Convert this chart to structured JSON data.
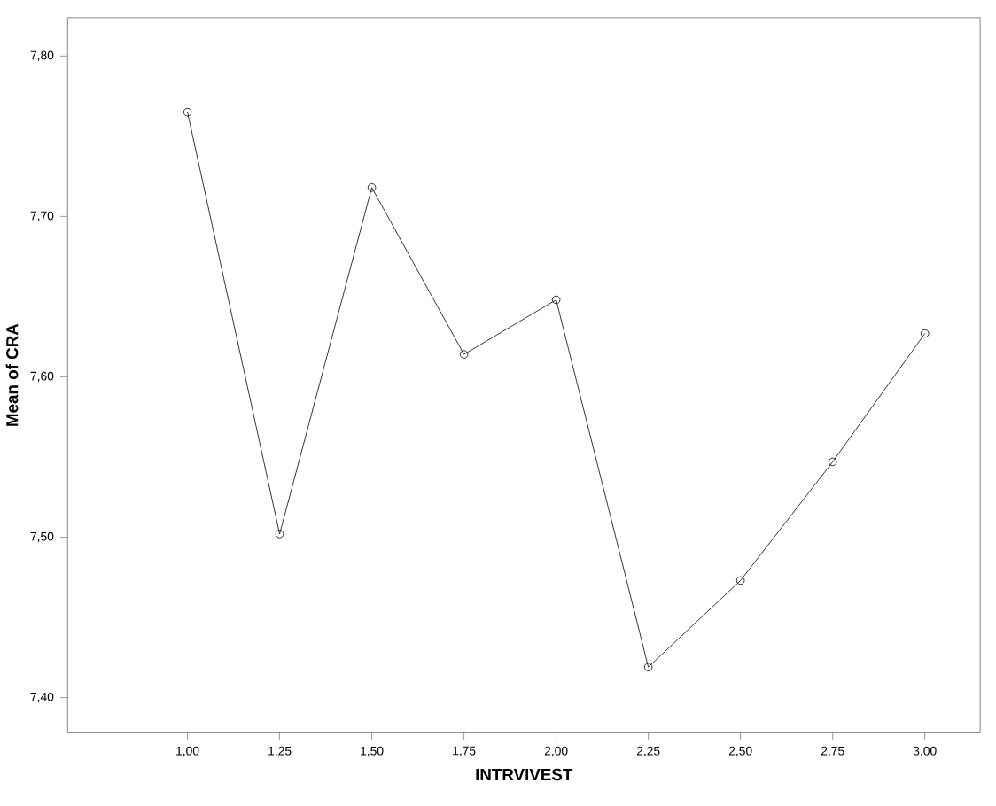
{
  "chart_data": {
    "type": "line",
    "xlabel": "INTRVIVEST",
    "ylabel": "Mean of CRA",
    "x": [
      1.0,
      1.25,
      1.5,
      1.75,
      2.0,
      2.25,
      2.5,
      2.75,
      3.0
    ],
    "series": [
      {
        "color": "#000000",
        "values": [
          7.765,
          7.502,
          7.718,
          7.614,
          7.648,
          7.419,
          7.473,
          7.547,
          7.627
        ]
      }
    ],
    "xlim": [
      0.675,
      3.15
    ],
    "ylim": [
      7.378,
      7.824
    ],
    "xticks": [
      {
        "value": 1.0,
        "label": "1,00"
      },
      {
        "value": 1.25,
        "label": "1,25"
      },
      {
        "value": 1.5,
        "label": "1,50"
      },
      {
        "value": 1.75,
        "label": "1,75"
      },
      {
        "value": 2.0,
        "label": "2,00"
      },
      {
        "value": 2.25,
        "label": "2,25"
      },
      {
        "value": 2.5,
        "label": "2,50"
      },
      {
        "value": 2.75,
        "label": "2,75"
      },
      {
        "value": 3.0,
        "label": "3,00"
      }
    ],
    "yticks": [
      {
        "value": 7.4,
        "label": "7,40"
      },
      {
        "value": 7.5,
        "label": "7,50"
      },
      {
        "value": 7.6,
        "label": "7,60"
      },
      {
        "value": 7.7,
        "label": "7,70"
      },
      {
        "value": 7.8,
        "label": "7,80"
      }
    ],
    "marker": "circle",
    "line_style": "solid"
  }
}
